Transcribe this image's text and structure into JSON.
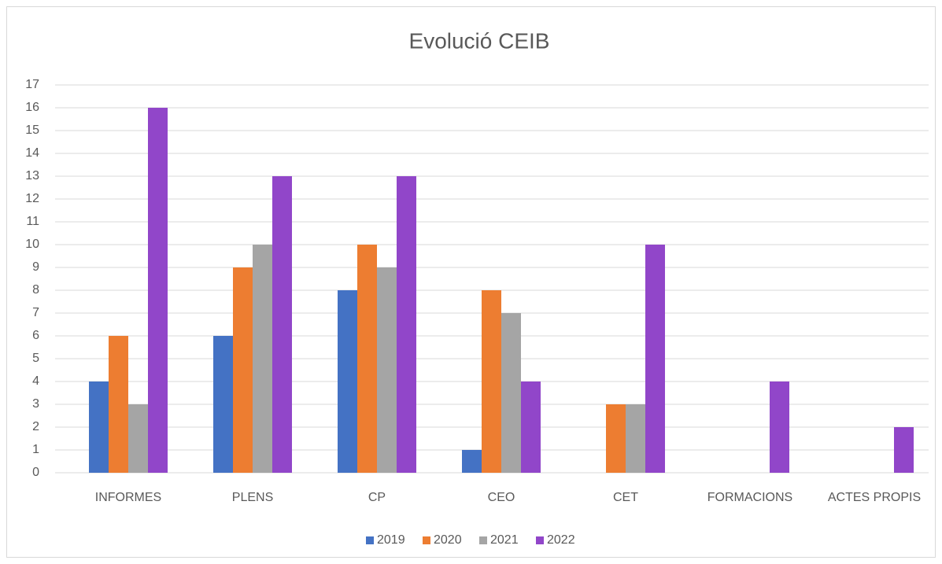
{
  "chart_data": {
    "type": "bar",
    "title": "Evolució CEIB",
    "categories": [
      "INFORMES",
      "PLENS",
      "CP",
      "CEO",
      "CET",
      "FORMACIONS",
      "ACTES PROPIS"
    ],
    "series": [
      {
        "name": "2019",
        "color": "#4472c4",
        "values": [
          4,
          6,
          8,
          1,
          0,
          0,
          0
        ]
      },
      {
        "name": "2020",
        "color": "#ed7d31",
        "values": [
          6,
          9,
          10,
          8,
          3,
          0,
          0
        ]
      },
      {
        "name": "2021",
        "color": "#a5a5a5",
        "values": [
          3,
          10,
          9,
          7,
          3,
          0,
          0
        ]
      },
      {
        "name": "2022",
        "color": "#9146c9",
        "values": [
          16,
          13,
          13,
          4,
          10,
          4,
          2
        ]
      }
    ],
    "ylim": [
      0,
      17
    ],
    "yticks": [
      0,
      1,
      2,
      3,
      4,
      5,
      6,
      7,
      8,
      9,
      10,
      11,
      12,
      13,
      14,
      15,
      16,
      17
    ],
    "grid": true,
    "legend": "bottom"
  }
}
